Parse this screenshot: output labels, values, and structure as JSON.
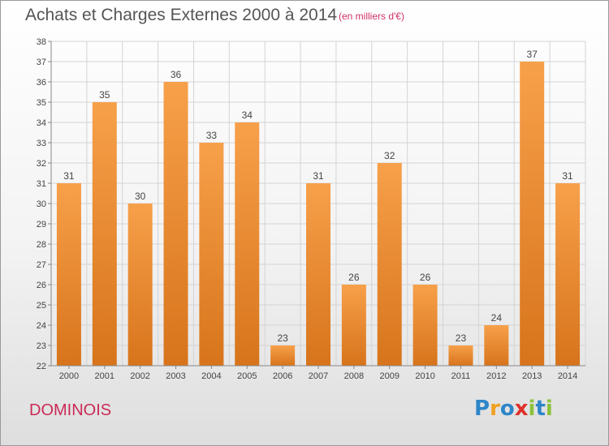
{
  "title": "Achats et Charges Externes 2000 à 2014",
  "subtitle": "(en milliers d'€)",
  "commune": "DOMINOIS",
  "brand": {
    "letters": [
      "P",
      "r",
      "o",
      "x",
      "i",
      "t",
      "i"
    ],
    "colors": [
      "#2d86c8",
      "#f0a020",
      "#2d86c8",
      "#e0302a",
      "#8cc23c",
      "#2d86c8",
      "#8cc23c"
    ]
  },
  "colors": {
    "bar_top": "#f7a04a",
    "bar_bottom": "#d7741b",
    "grid": "#d4d4d4",
    "axis": "#888888",
    "label": "#444444"
  },
  "chart_data": {
    "type": "bar",
    "title": "Achats et Charges Externes 2000 à 2014",
    "subtitle": "(en milliers d'€)",
    "categories": [
      "2000",
      "2001",
      "2002",
      "2003",
      "2004",
      "2005",
      "2006",
      "2007",
      "2008",
      "2009",
      "2010",
      "2011",
      "2012",
      "2013",
      "2014"
    ],
    "values": [
      31,
      35,
      30,
      36,
      33,
      34,
      23,
      31,
      26,
      32,
      26,
      23,
      24,
      37,
      31
    ],
    "ylim": [
      22,
      38
    ],
    "yticks": [
      22,
      23,
      24,
      25,
      26,
      27,
      28,
      29,
      30,
      31,
      32,
      33,
      34,
      35,
      36,
      37,
      38
    ],
    "grid": true,
    "data_labels": true
  }
}
